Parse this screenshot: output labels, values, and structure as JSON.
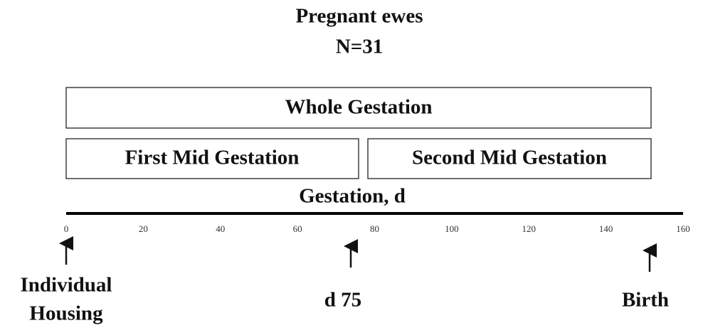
{
  "title": [
    "Pregnant ewes",
    "N=31"
  ],
  "boxes": [
    "Whole Gestation",
    "First Mid Gestation",
    "Second Mid Gestation"
  ],
  "axis": {
    "label": "Gestation, d",
    "ticks": [
      0,
      20,
      40,
      60,
      80,
      100,
      120,
      140,
      160
    ]
  },
  "events": [
    [
      "Individual",
      "Housing"
    ],
    [
      "d 75"
    ],
    [
      "Birth"
    ]
  ]
}
